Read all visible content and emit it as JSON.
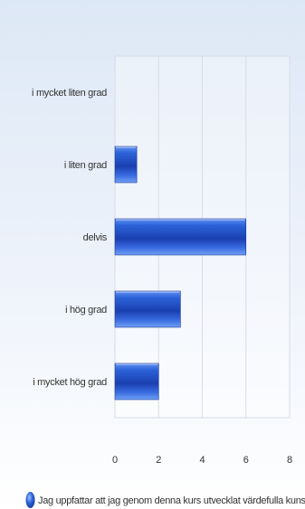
{
  "chart_data": {
    "type": "bar",
    "orientation": "horizontal",
    "categories": [
      "i mycket liten grad",
      "i liten grad",
      "delvis",
      "i hög grad",
      "i mycket hög grad"
    ],
    "series": [
      {
        "name": "Jag uppfattar att jag genom denna kurs utvecklat värdefulla kunskape",
        "values": [
          0,
          1,
          6,
          3,
          2
        ],
        "color": "#2255cc"
      }
    ],
    "xlim": [
      0,
      8
    ],
    "xticks": [
      "0",
      "2",
      "4",
      "6",
      "8"
    ],
    "grid": true,
    "legend_position": "bottom"
  }
}
